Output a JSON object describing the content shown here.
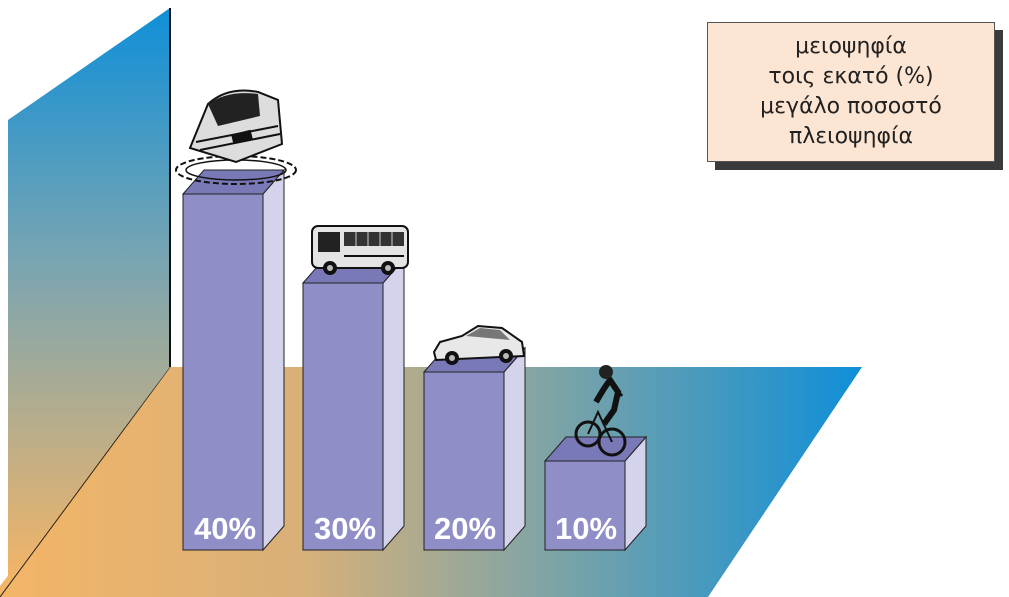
{
  "chart_data": {
    "type": "bar",
    "categories": [
      "train",
      "bus",
      "car",
      "bicycle"
    ],
    "values": [
      40,
      30,
      20,
      10
    ],
    "value_labels": [
      "40%",
      "30%",
      "20%",
      "10%"
    ],
    "ylim": [
      0,
      45
    ],
    "grid": false,
    "legend": {
      "position": "top-right",
      "lines": [
        "μειοψηφία",
        "τοις εκατό (%)",
        "μεγάλο ποσοστό",
        "πλειοψηφία"
      ]
    }
  },
  "icons": [
    "train-icon",
    "bus-icon",
    "car-icon",
    "bicycle-icon"
  ],
  "colors": {
    "bar_front": "#8f8ec7",
    "bar_side": "#d4d3ec",
    "bar_top": "#7a79b8",
    "floor_left": "#f4b566",
    "floor_right": "#0f8fd8",
    "wall_top": "#0f8fd8",
    "wall_bottom": "#f4b566",
    "legend_bg": "#fde5d3",
    "value_text": "#ffffff"
  }
}
